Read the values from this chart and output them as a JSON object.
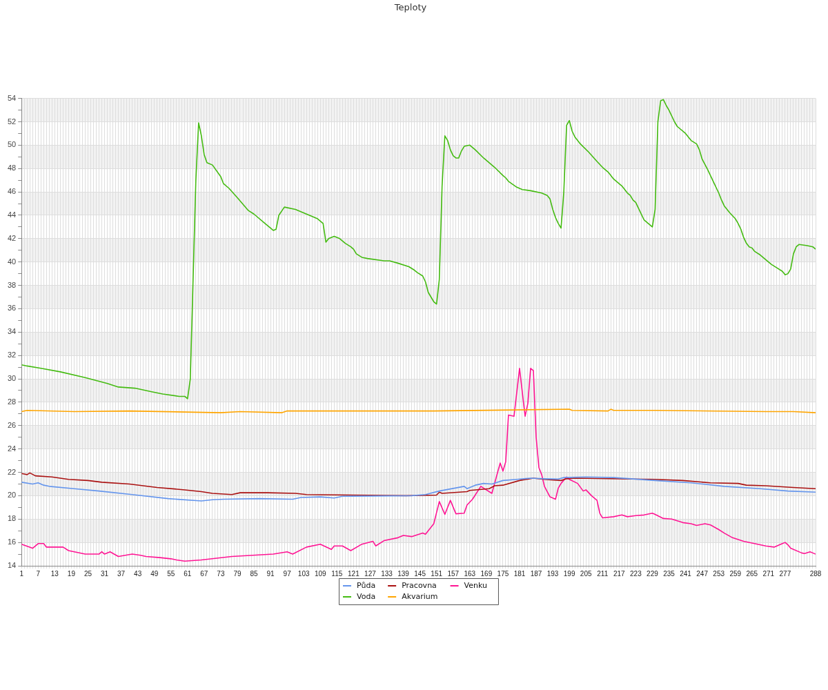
{
  "chart_data": {
    "type": "line",
    "title": "Teploty",
    "legend": "bottom",
    "grid": true,
    "marker": "none",
    "line_style": "solid",
    "xlim": [
      1,
      288
    ],
    "xticks": [
      1,
      {
        "value": 2,
        "label": null
      },
      {
        "value": 3,
        "label": null
      },
      {
        "value": 4,
        "label": null
      },
      {
        "value": 5,
        "label": null
      },
      {
        "value": 6,
        "label": null
      },
      7,
      {
        "value": 8,
        "label": null
      },
      {
        "value": 9,
        "label": null
      },
      {
        "value": 10,
        "label": null
      },
      {
        "value": 11,
        "label": null
      },
      {
        "value": 12,
        "label": null
      },
      13,
      {
        "value": 14,
        "label": null
      },
      {
        "value": 15,
        "label": null
      },
      {
        "value": 16,
        "label": null
      },
      {
        "value": 17,
        "label": null
      },
      {
        "value": 18,
        "label": null
      },
      19,
      {
        "value": 20,
        "label": null
      },
      {
        "value": 21,
        "label": null
      },
      {
        "value": 22,
        "label": null
      },
      {
        "value": 23,
        "label": null
      },
      {
        "value": 24,
        "label": null
      },
      25,
      {
        "value": 26,
        "label": null
      },
      {
        "value": 27,
        "label": null
      },
      {
        "value": 28,
        "label": null
      },
      {
        "value": 29,
        "label": null
      },
      {
        "value": 30,
        "label": null
      },
      31,
      {
        "value": 32,
        "label": null
      },
      {
        "value": 33,
        "label": null
      },
      {
        "value": 34,
        "label": null
      },
      {
        "value": 35,
        "label": null
      },
      {
        "value": 36,
        "label": null
      },
      37,
      {
        "value": 38,
        "label": null
      },
      {
        "value": 39,
        "label": null
      },
      {
        "value": 40,
        "label": null
      },
      {
        "value": 41,
        "label": null
      },
      {
        "value": 42,
        "label": null
      },
      43,
      {
        "value": 44,
        "label": null
      },
      {
        "value": 45,
        "label": null
      },
      {
        "value": 46,
        "label": null
      },
      {
        "value": 47,
        "label": null
      },
      {
        "value": 48,
        "label": null
      },
      49,
      {
        "value": 50,
        "label": null
      },
      {
        "value": 51,
        "label": null
      },
      {
        "value": 52,
        "label": null
      },
      {
        "value": 53,
        "label": null
      },
      {
        "value": 54,
        "label": null
      },
      55,
      {
        "value": 56,
        "label": null
      },
      {
        "value": 57,
        "label": null
      },
      {
        "value": 58,
        "label": null
      },
      {
        "value": 59,
        "label": null
      },
      {
        "value": 60,
        "label": null
      },
      61,
      {
        "value": 62,
        "label": null
      },
      {
        "value": 63,
        "label": null
      },
      {
        "value": 64,
        "label": null
      },
      {
        "value": 65,
        "label": null
      },
      {
        "value": 66,
        "label": null
      },
      67,
      {
        "value": 68,
        "label": null
      },
      {
        "value": 69,
        "label": null
      },
      {
        "value": 70,
        "label": null
      },
      {
        "value": 71,
        "label": null
      },
      {
        "value": 72,
        "label": null
      },
      73,
      {
        "value": 74,
        "label": null
      },
      {
        "value": 75,
        "label": null
      },
      {
        "value": 76,
        "label": null
      },
      {
        "value": 77,
        "label": null
      },
      {
        "value": 78,
        "label": null
      },
      79,
      {
        "value": 80,
        "label": null
      },
      {
        "value": 81,
        "label": null
      },
      {
        "value": 82,
        "label": null
      },
      {
        "value": 83,
        "label": null
      },
      {
        "value": 84,
        "label": null
      },
      85,
      {
        "value": 86,
        "label": null
      },
      {
        "value": 87,
        "label": null
      },
      {
        "value": 88,
        "label": null
      },
      {
        "value": 89,
        "label": null
      },
      {
        "value": 90,
        "label": null
      },
      91,
      {
        "value": 92,
        "label": null
      },
      {
        "value": 93,
        "label": null
      },
      {
        "value": 94,
        "label": null
      },
      {
        "value": 95,
        "label": null
      },
      {
        "value": 96,
        "label": null
      },
      97,
      {
        "value": 98,
        "label": null
      },
      {
        "value": 99,
        "label": null
      },
      {
        "value": 100,
        "label": null
      },
      {
        "value": 101,
        "label": null
      },
      {
        "value": 102,
        "label": null
      },
      103,
      {
        "value": 104,
        "label": null
      },
      {
        "value": 105,
        "label": null
      },
      {
        "value": 106,
        "label": null
      },
      {
        "value": 107,
        "label": null
      },
      {
        "value": 108,
        "label": null
      },
      109,
      {
        "value": 110,
        "label": null
      },
      {
        "value": 111,
        "label": null
      },
      {
        "value": 112,
        "label": null
      },
      {
        "value": 113,
        "label": null
      },
      {
        "value": 114,
        "label": null
      },
      115,
      {
        "value": 116,
        "label": null
      },
      {
        "value": 117,
        "label": null
      },
      {
        "value": 118,
        "label": null
      },
      {
        "value": 119,
        "label": null
      },
      {
        "value": 120,
        "label": null
      },
      121,
      {
        "value": 122,
        "label": null
      },
      {
        "value": 123,
        "label": null
      },
      {
        "value": 124,
        "label": null
      },
      {
        "value": 125,
        "label": null
      },
      {
        "value": 126,
        "label": null
      },
      127,
      {
        "value": 128,
        "label": null
      },
      {
        "value": 129,
        "label": null
      },
      {
        "value": 130,
        "label": null
      },
      {
        "value": 131,
        "label": null
      },
      {
        "value": 132,
        "label": null
      },
      133,
      {
        "value": 134,
        "label": null
      },
      {
        "value": 135,
        "label": null
      },
      {
        "value": 136,
        "label": null
      },
      {
        "value": 137,
        "label": null
      },
      {
        "value": 138,
        "label": null
      },
      139,
      {
        "value": 140,
        "label": null
      },
      {
        "value": 141,
        "label": null
      },
      {
        "value": 142,
        "label": null
      },
      {
        "value": 143,
        "label": null
      },
      {
        "value": 144,
        "label": null
      },
      145,
      {
        "value": 146,
        "label": null
      },
      {
        "value": 147,
        "label": null
      },
      {
        "value": 148,
        "label": null
      },
      {
        "value": 149,
        "label": null
      },
      {
        "value": 150,
        "label": null
      },
      151,
      {
        "value": 152,
        "label": null
      },
      {
        "value": 153,
        "label": null
      },
      {
        "value": 154,
        "label": null
      },
      {
        "value": 155,
        "label": null
      },
      {
        "value": 156,
        "label": null
      },
      157,
      {
        "value": 158,
        "label": null
      },
      {
        "value": 159,
        "label": null
      },
      {
        "value": 160,
        "label": null
      },
      {
        "value": 161,
        "label": null
      },
      {
        "value": 162,
        "label": null
      },
      163,
      {
        "value": 164,
        "label": null
      },
      {
        "value": 165,
        "label": null
      },
      {
        "value": 166,
        "label": null
      },
      {
        "value": 167,
        "label": null
      },
      {
        "value": 168,
        "label": null
      },
      169,
      {
        "value": 170,
        "label": null
      },
      {
        "value": 171,
        "label": null
      },
      {
        "value": 172,
        "label": null
      },
      {
        "value": 173,
        "label": null
      },
      {
        "value": 174,
        "label": null
      },
      175,
      {
        "value": 176,
        "label": null
      },
      {
        "value": 177,
        "label": null
      },
      {
        "value": 178,
        "label": null
      },
      {
        "value": 179,
        "label": null
      },
      {
        "value": 180,
        "label": null
      },
      181,
      {
        "value": 182,
        "label": null
      },
      {
        "value": 183,
        "label": null
      },
      {
        "value": 184,
        "label": null
      },
      {
        "value": 185,
        "label": null
      },
      {
        "value": 186,
        "label": null
      },
      187,
      {
        "value": 188,
        "label": null
      },
      {
        "value": 189,
        "label": null
      },
      {
        "value": 190,
        "label": null
      },
      {
        "value": 191,
        "label": null
      },
      {
        "value": 192,
        "label": null
      },
      193,
      {
        "value": 194,
        "label": null
      },
      {
        "value": 195,
        "label": null
      },
      {
        "value": 196,
        "label": null
      },
      {
        "value": 197,
        "label": null
      },
      {
        "value": 198,
        "label": null
      },
      199,
      {
        "value": 200,
        "label": null
      },
      {
        "value": 201,
        "label": null
      },
      {
        "value": 202,
        "label": null
      },
      {
        "value": 203,
        "label": null
      },
      {
        "value": 204,
        "label": null
      },
      205,
      {
        "value": 206,
        "label": null
      },
      {
        "value": 207,
        "label": null
      },
      {
        "value": 208,
        "label": null
      },
      {
        "value": 209,
        "label": null
      },
      {
        "value": 210,
        "label": null
      },
      211,
      {
        "value": 212,
        "label": null
      },
      {
        "value": 213,
        "label": null
      },
      {
        "value": 214,
        "label": null
      },
      {
        "value": 215,
        "label": null
      },
      {
        "value": 216,
        "label": null
      },
      217,
      {
        "value": 218,
        "label": null
      },
      {
        "value": 219,
        "label": null
      },
      {
        "value": 220,
        "label": null
      },
      {
        "value": 221,
        "label": null
      },
      {
        "value": 222,
        "label": null
      },
      223,
      {
        "value": 224,
        "label": null
      },
      {
        "value": 225,
        "label": null
      },
      {
        "value": 226,
        "label": null
      },
      {
        "value": 227,
        "label": null
      },
      {
        "value": 228,
        "label": null
      },
      229,
      {
        "value": 230,
        "label": null
      },
      {
        "value": 231,
        "label": null
      },
      {
        "value": 232,
        "label": null
      },
      {
        "value": 233,
        "label": null
      },
      {
        "value": 234,
        "label": null
      },
      235,
      {
        "value": 236,
        "label": null
      },
      {
        "value": 237,
        "label": null
      },
      {
        "value": 238,
        "label": null
      },
      {
        "value": 239,
        "label": null
      },
      {
        "value": 240,
        "label": null
      },
      241,
      {
        "value": 242,
        "label": null
      },
      {
        "value": 243,
        "label": null
      },
      {
        "value": 244,
        "label": null
      },
      {
        "value": 245,
        "label": null
      },
      {
        "value": 246,
        "label": null
      },
      247,
      {
        "value": 248,
        "label": null
      },
      {
        "value": 249,
        "label": null
      },
      {
        "value": 250,
        "label": null
      },
      {
        "value": 251,
        "label": null
      },
      {
        "value": 252,
        "label": null
      },
      253,
      {
        "value": 254,
        "label": null
      },
      {
        "value": 255,
        "label": null
      },
      {
        "value": 256,
        "label": null
      },
      {
        "value": 257,
        "label": null
      },
      {
        "value": 258,
        "label": null
      },
      259,
      {
        "value": 260,
        "label": null
      },
      {
        "value": 261,
        "label": null
      },
      {
        "value": 262,
        "label": null
      },
      {
        "value": 263,
        "label": null
      },
      {
        "value": 264,
        "label": null
      },
      265,
      {
        "value": 266,
        "label": null
      },
      {
        "value": 267,
        "label": null
      },
      {
        "value": 268,
        "label": null
      },
      {
        "value": 269,
        "label": null
      },
      {
        "value": 270,
        "label": null
      },
      271,
      {
        "value": 272,
        "label": null
      },
      {
        "value": 273,
        "label": null
      },
      {
        "value": 274,
        "label": null
      },
      {
        "value": 275,
        "label": null
      },
      {
        "value": 276,
        "label": null
      },
      277,
      {
        "value": 278,
        "label": null
      },
      {
        "value": 279,
        "label": null
      },
      {
        "value": 280,
        "label": null
      },
      {
        "value": 281,
        "label": null
      },
      {
        "value": 282,
        "label": null
      },
      {
        "value": 283,
        "label": null
      },
      {
        "value": 284,
        "label": null
      },
      {
        "value": 285,
        "label": null
      },
      {
        "value": 286,
        "label": null
      },
      {
        "value": 287,
        "label": null
      },
      288
    ],
    "ylim": [
      14,
      54
    ],
    "yticks": [
      14,
      {
        "value": 15,
        "label": null
      },
      16,
      {
        "value": 17,
        "label": null
      },
      18,
      {
        "value": 19,
        "label": null
      },
      20,
      {
        "value": 21,
        "label": null
      },
      22,
      {
        "value": 23,
        "label": null
      },
      24,
      {
        "value": 25,
        "label": null
      },
      26,
      {
        "value": 27,
        "label": null
      },
      28,
      {
        "value": 29,
        "label": null
      },
      30,
      {
        "value": 31,
        "label": null
      },
      32,
      {
        "value": 33,
        "label": null
      },
      34,
      {
        "value": 35,
        "label": null
      },
      36,
      {
        "value": 37,
        "label": null
      },
      38,
      {
        "value": 39,
        "label": null
      },
      40,
      {
        "value": 41,
        "label": null
      },
      42,
      {
        "value": 43,
        "label": null
      },
      44,
      {
        "value": 45,
        "label": null
      },
      46,
      {
        "value": 47,
        "label": null
      },
      48,
      {
        "value": 49,
        "label": null
      },
      50,
      {
        "value": 51,
        "label": null
      },
      52,
      {
        "value": 53,
        "label": null
      },
      54
    ],
    "series": [
      {
        "name": "Půda",
        "color": "#6495ed",
        "x": [
          1,
          5,
          7,
          9,
          11,
          20,
          29,
          41,
          54,
          66,
          70,
          74,
          87,
          99,
          102,
          109,
          114,
          117,
          142,
          147,
          152,
          161,
          162,
          165,
          168,
          171,
          175,
          180,
          185,
          190,
          195,
          197,
          205,
          215,
          230,
          243,
          255,
          268,
          278,
          288
        ],
        "values": [
          21.15,
          21.0,
          21.1,
          20.9,
          20.8,
          20.6,
          20.4,
          20.1,
          19.75,
          19.55,
          19.65,
          19.7,
          19.75,
          19.7,
          19.85,
          19.9,
          19.8,
          19.95,
          20.0,
          20.1,
          20.4,
          20.8,
          20.6,
          20.9,
          21.05,
          21.0,
          21.3,
          21.4,
          21.5,
          21.45,
          21.42,
          21.55,
          21.6,
          21.55,
          21.3,
          21.1,
          20.8,
          20.6,
          20.4,
          20.3
        ]
      },
      {
        "name": "Voda",
        "color": "#44bb11",
        "x": [
          1,
          3,
          8,
          15,
          24,
          32,
          36,
          42,
          48,
          52,
          58,
          60,
          61,
          62,
          64,
          65,
          66,
          67,
          68,
          70,
          73,
          74,
          76,
          79,
          83,
          85,
          89,
          92,
          93,
          94,
          96,
          100,
          104,
          108,
          110,
          111,
          112,
          114,
          116,
          118,
          120,
          121,
          122,
          124,
          126,
          132,
          134,
          137,
          141,
          143,
          144,
          146,
          147,
          148,
          150,
          151,
          152,
          153,
          154,
          155,
          156,
          157,
          158,
          159,
          160,
          161,
          163,
          165,
          168,
          172,
          175,
          176,
          177,
          180,
          182,
          185,
          189,
          191,
          192,
          193,
          194,
          195,
          196,
          197,
          198,
          199,
          200,
          201,
          203,
          206,
          209,
          211,
          213,
          215,
          218,
          220,
          221,
          222,
          223,
          224,
          226,
          227,
          229,
          230,
          231,
          232,
          233,
          234,
          235,
          237,
          238,
          241,
          243,
          245,
          246,
          247,
          249,
          251,
          253,
          254,
          255,
          257,
          259,
          260,
          261,
          262,
          263,
          264,
          265,
          266,
          268,
          270,
          272,
          274,
          276,
          277,
          278,
          279,
          280,
          281,
          282,
          285,
          287,
          288
        ],
        "values": [
          31.2,
          31.1,
          30.9,
          30.6,
          30.1,
          29.6,
          29.3,
          29.2,
          28.9,
          28.7,
          28.5,
          28.5,
          28.3,
          30.0,
          47,
          51.9,
          50.8,
          49.2,
          48.5,
          48.3,
          47.3,
          46.7,
          46.3,
          45.5,
          44.4,
          44.1,
          43.3,
          42.7,
          42.8,
          44.0,
          44.7,
          44.5,
          44.1,
          43.7,
          43.3,
          41.7,
          42.0,
          42.2,
          42.0,
          41.6,
          41.3,
          41.1,
          40.7,
          40.4,
          40.3,
          40.1,
          40.1,
          39.9,
          39.6,
          39.3,
          39.1,
          38.8,
          38.3,
          37.4,
          36.6,
          36.4,
          38.5,
          46.5,
          50.8,
          50.4,
          49.6,
          49.1,
          48.9,
          48.9,
          49.5,
          49.9,
          50.0,
          49.6,
          48.9,
          48.1,
          47.4,
          47.2,
          46.9,
          46.4,
          46.2,
          46.1,
          45.9,
          45.7,
          45.4,
          44.5,
          43.8,
          43.3,
          42.9,
          46.0,
          51.7,
          52.1,
          51.2,
          50.7,
          50.1,
          49.4,
          48.6,
          48.1,
          47.7,
          47.1,
          46.5,
          45.9,
          45.7,
          45.3,
          45.1,
          44.6,
          43.6,
          43.4,
          43.0,
          44.5,
          52.0,
          53.8,
          53.9,
          53.4,
          53.0,
          52.0,
          51.6,
          51.0,
          50.4,
          50.1,
          49.6,
          48.8,
          47.9,
          46.9,
          45.9,
          45.3,
          44.8,
          44.2,
          43.7,
          43.3,
          42.8,
          42.1,
          41.6,
          41.3,
          41.2,
          40.9,
          40.6,
          40.2,
          39.8,
          39.5,
          39.2,
          38.9,
          39.0,
          39.4,
          40.7,
          41.3,
          41.5,
          41.4,
          41.3,
          41.1
        ]
      },
      {
        "name": "Pracovna",
        "color": "#aa1111",
        "x": [
          1,
          2,
          3,
          4,
          6,
          12,
          18,
          25,
          30,
          40,
          50,
          60,
          66,
          70,
          77,
          80,
          90,
          100,
          104,
          140,
          151,
          152,
          153,
          162,
          163,
          170,
          172,
          175,
          181,
          186,
          190,
          196,
          198,
          201,
          230,
          240,
          250,
          260,
          263,
          270,
          280,
          288
        ],
        "values": [
          21.9,
          21.85,
          21.8,
          21.95,
          21.7,
          21.6,
          21.4,
          21.3,
          21.15,
          21.0,
          20.7,
          20.5,
          20.35,
          20.2,
          20.1,
          20.25,
          20.25,
          20.2,
          20.1,
          20.0,
          20.05,
          20.3,
          20.2,
          20.35,
          20.45,
          20.6,
          20.85,
          20.9,
          21.3,
          21.5,
          21.4,
          21.3,
          21.45,
          21.5,
          21.4,
          21.3,
          21.1,
          21.05,
          20.9,
          20.85,
          20.7,
          20.6
        ]
      },
      {
        "name": "Akvarium",
        "color": "#ffa500",
        "x": [
          1,
          3,
          20,
          40,
          73,
          80,
          95,
          97,
          150,
          199,
          200,
          213,
          214,
          215,
          230,
          270,
          280,
          288
        ],
        "values": [
          27.2,
          27.3,
          27.2,
          27.25,
          27.1,
          27.2,
          27.1,
          27.25,
          27.25,
          27.4,
          27.3,
          27.25,
          27.4,
          27.3,
          27.3,
          27.2,
          27.2,
          27.1
        ]
      },
      {
        "name": "Venku",
        "color": "#ff1493",
        "x": [
          1,
          5,
          7,
          9,
          10,
          16,
          18,
          24,
          29,
          30,
          31,
          33,
          36,
          41,
          44,
          46,
          51,
          55,
          57,
          60,
          66,
          77,
          92,
          97,
          99,
          104,
          109,
          113,
          114,
          117,
          120,
          124,
          128,
          129,
          132,
          137,
          139,
          142,
          146,
          147,
          150,
          152,
          154,
          156,
          158,
          161,
          162,
          164,
          167,
          171,
          174,
          175,
          176,
          177,
          179,
          181,
          183,
          184,
          185,
          186,
          187,
          188,
          189,
          190,
          192,
          194,
          195,
          196,
          198,
          199,
          202,
          204,
          205,
          207,
          209,
          210,
          211,
          215,
          218,
          220,
          223,
          226,
          229,
          230,
          233,
          236,
          240,
          243,
          245,
          248,
          250,
          253,
          255,
          258,
          262,
          265,
          270,
          273,
          276,
          277,
          278,
          279,
          283,
          284,
          286,
          287,
          288
        ],
        "values": [
          15.85,
          15.5,
          15.9,
          15.9,
          15.6,
          15.6,
          15.3,
          15.0,
          15.0,
          15.2,
          15.0,
          15.2,
          14.8,
          15.0,
          14.9,
          14.8,
          14.7,
          14.6,
          14.5,
          14.4,
          14.5,
          14.8,
          15.0,
          15.2,
          15.0,
          15.6,
          15.85,
          15.4,
          15.7,
          15.7,
          15.3,
          15.85,
          16.1,
          15.7,
          16.15,
          16.4,
          16.6,
          16.5,
          16.8,
          16.7,
          17.6,
          19.5,
          18.4,
          19.6,
          18.45,
          18.5,
          19.2,
          19.7,
          20.8,
          20.2,
          22.8,
          22.1,
          22.9,
          26.9,
          26.8,
          30.9,
          26.8,
          27.9,
          30.9,
          30.7,
          25.0,
          22.4,
          21.8,
          20.8,
          19.9,
          19.7,
          20.65,
          21.05,
          21.6,
          21.4,
          21.05,
          20.4,
          20.5,
          20.0,
          19.6,
          18.5,
          18.1,
          18.2,
          18.35,
          18.2,
          18.3,
          18.35,
          18.5,
          18.4,
          18.05,
          18.0,
          17.7,
          17.6,
          17.45,
          17.6,
          17.5,
          17.1,
          16.8,
          16.4,
          16.1,
          15.95,
          15.7,
          15.6,
          15.9,
          16.0,
          15.8,
          15.5,
          15.1,
          15.05,
          15.2,
          15.1,
          15.0
        ]
      }
    ]
  }
}
